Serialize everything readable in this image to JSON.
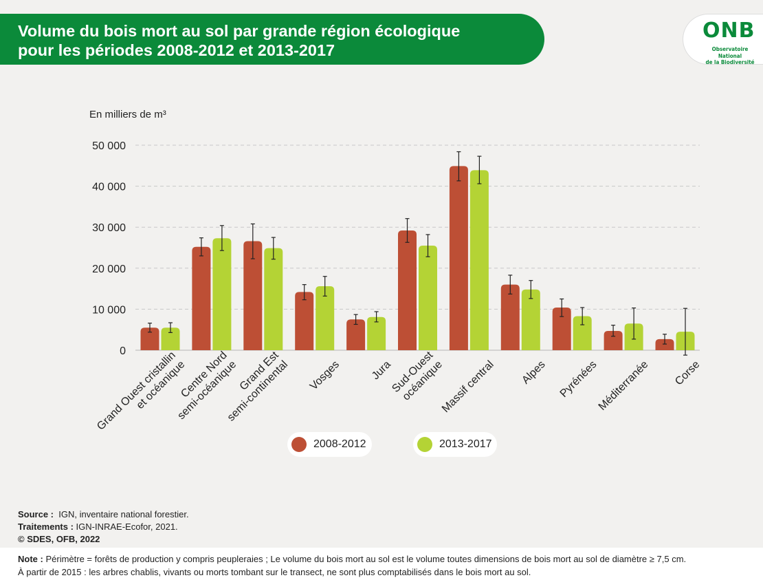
{
  "title": {
    "line1": "Volume du bois mort au sol par grande région écologique",
    "line2": "pour les périodes 2008-2012 et 2013-2017"
  },
  "logo": {
    "text": "ONB",
    "subtitle_line1": "Observatoire National",
    "subtitle_line2": "de la Biodiversité"
  },
  "colors": {
    "banner": "#0b8a3a",
    "series1": "#bd4f35",
    "series2": "#b4d335",
    "grid": "#c8c8c8",
    "axis_text": "#222222"
  },
  "chart_data": {
    "type": "bar",
    "ylabel": "En milliers de m³",
    "ylim": [
      0,
      50000
    ],
    "yticks": [
      0,
      10000,
      20000,
      30000,
      40000,
      50000
    ],
    "ytick_labels": [
      "0",
      "10 000",
      "20 000",
      "30 000",
      "40 000",
      "50 000"
    ],
    "grid": true,
    "legend_position": "bottom-center",
    "categories": [
      [
        "Grand Ouest cristallin",
        "et océanique"
      ],
      [
        "Centre Nord",
        "semi-océanique"
      ],
      [
        "Grand Est",
        "semi-continental"
      ],
      [
        "Vosges"
      ],
      [
        "Jura"
      ],
      [
        "Sud-Ouest",
        "océanique"
      ],
      [
        "Massif central"
      ],
      [
        "Alpes"
      ],
      [
        "Pyrénées"
      ],
      [
        "Méditerranée"
      ],
      [
        "Corse"
      ]
    ],
    "series": [
      {
        "name": "2008-2012",
        "color": "#bd4f35",
        "values": [
          5500,
          25200,
          26600,
          14200,
          7500,
          29200,
          44900,
          16000,
          10400,
          4700,
          2700
        ],
        "err_low": [
          4400,
          23000,
          22300,
          12300,
          6300,
          26300,
          41300,
          13700,
          8200,
          3400,
          1500
        ],
        "err_high": [
          6600,
          27400,
          30800,
          16000,
          8700,
          32100,
          48400,
          18300,
          12500,
          6100,
          3900
        ]
      },
      {
        "name": "2013-2017",
        "color": "#b4d335",
        "values": [
          5500,
          27300,
          24900,
          15600,
          8100,
          25500,
          43900,
          14800,
          8300,
          6500,
          4500
        ],
        "err_low": [
          4300,
          24300,
          22200,
          13200,
          6900,
          22800,
          40600,
          12600,
          6200,
          2700,
          -1200
        ],
        "err_high": [
          6700,
          30400,
          27500,
          18000,
          9400,
          28200,
          47300,
          17000,
          10400,
          10300,
          10200
        ]
      }
    ]
  },
  "footer": {
    "source_label": "Source :",
    "source_text": "IGN, inventaire national forestier.",
    "traitements_label": "Traitements :",
    "traitements_text": "IGN-INRAE-Ecofor, 2021.",
    "copyright": "© SDES, OFB, 2022",
    "note_label": "Note :",
    "note_line1": "Périmètre = forêts de production y compris peupleraies ; Le volume du bois mort au sol est le volume toutes dimensions de bois mort au sol de diamètre ≥ 7,5 cm.",
    "note_line2": "À partir de 2015 : les arbres chablis, vivants ou morts tombant sur le transect, ne sont plus comptabilisés dans le bois mort au sol."
  }
}
